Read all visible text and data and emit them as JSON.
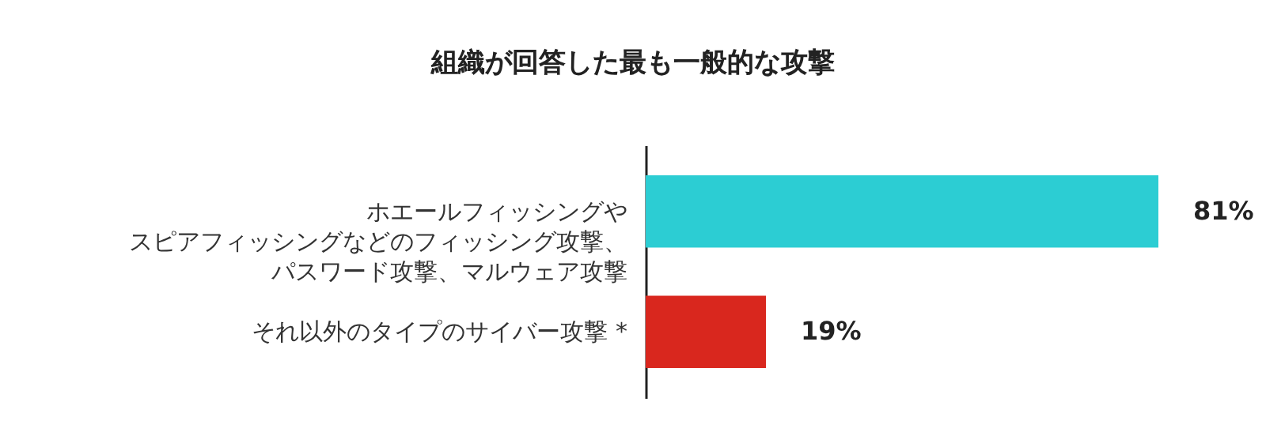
{
  "chart_data": {
    "type": "bar",
    "title": "組織が回答した最も一般的な攻撃",
    "orientation": "horizontal",
    "categories": [
      "ホエールフィッシングやスピアフィッシングなどのフィッシング攻撃、パスワード攻撃、マルウェア攻撃",
      "それ以外のタイプのサイバー攻撃 *"
    ],
    "values": [
      81,
      19
    ],
    "colors": [
      "#2ccdd3",
      "#d9271e"
    ],
    "value_labels": [
      "81%",
      "19%"
    ]
  }
}
